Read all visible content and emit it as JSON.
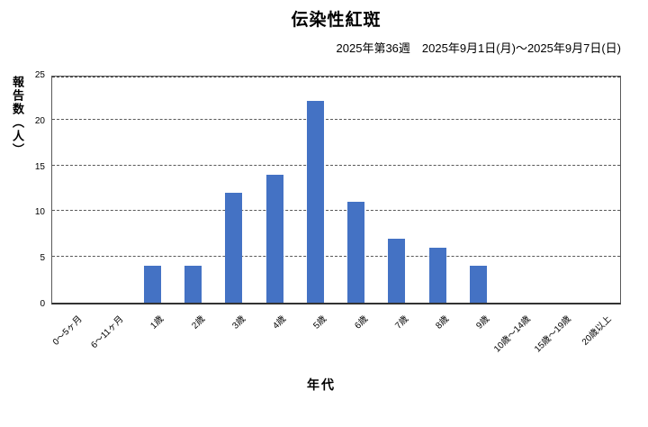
{
  "title": "伝染性紅斑",
  "subtitle": "2025年第36週　2025年9月1日(月)～2025年9月7日(日)",
  "chart_data": {
    "type": "bar",
    "title": "伝染性紅斑",
    "subtitle": "2025年第36週　2025年9月1日(月)～2025年9月7日(日)",
    "categories": [
      "0～5ヶ月",
      "6～11ヶ月",
      "1歳",
      "2歳",
      "3歳",
      "4歳",
      "5歳",
      "6歳",
      "7歳",
      "8歳",
      "9歳",
      "10歳～14歳",
      "15歳～19歳",
      "20歳以上"
    ],
    "values": [
      0,
      0,
      4,
      4,
      12,
      14,
      22,
      11,
      7,
      6,
      4,
      0,
      0,
      0
    ],
    "xlabel": "年代",
    "ylabel": "報告数（人）",
    "ylim": [
      0,
      25
    ],
    "ytick_step": 5,
    "yticks": [
      0,
      5,
      10,
      15,
      20,
      25
    ],
    "bar_color": "#4472C4",
    "axis_color": "#595959",
    "grid": "horizontal-dashed",
    "legend": "none"
  }
}
